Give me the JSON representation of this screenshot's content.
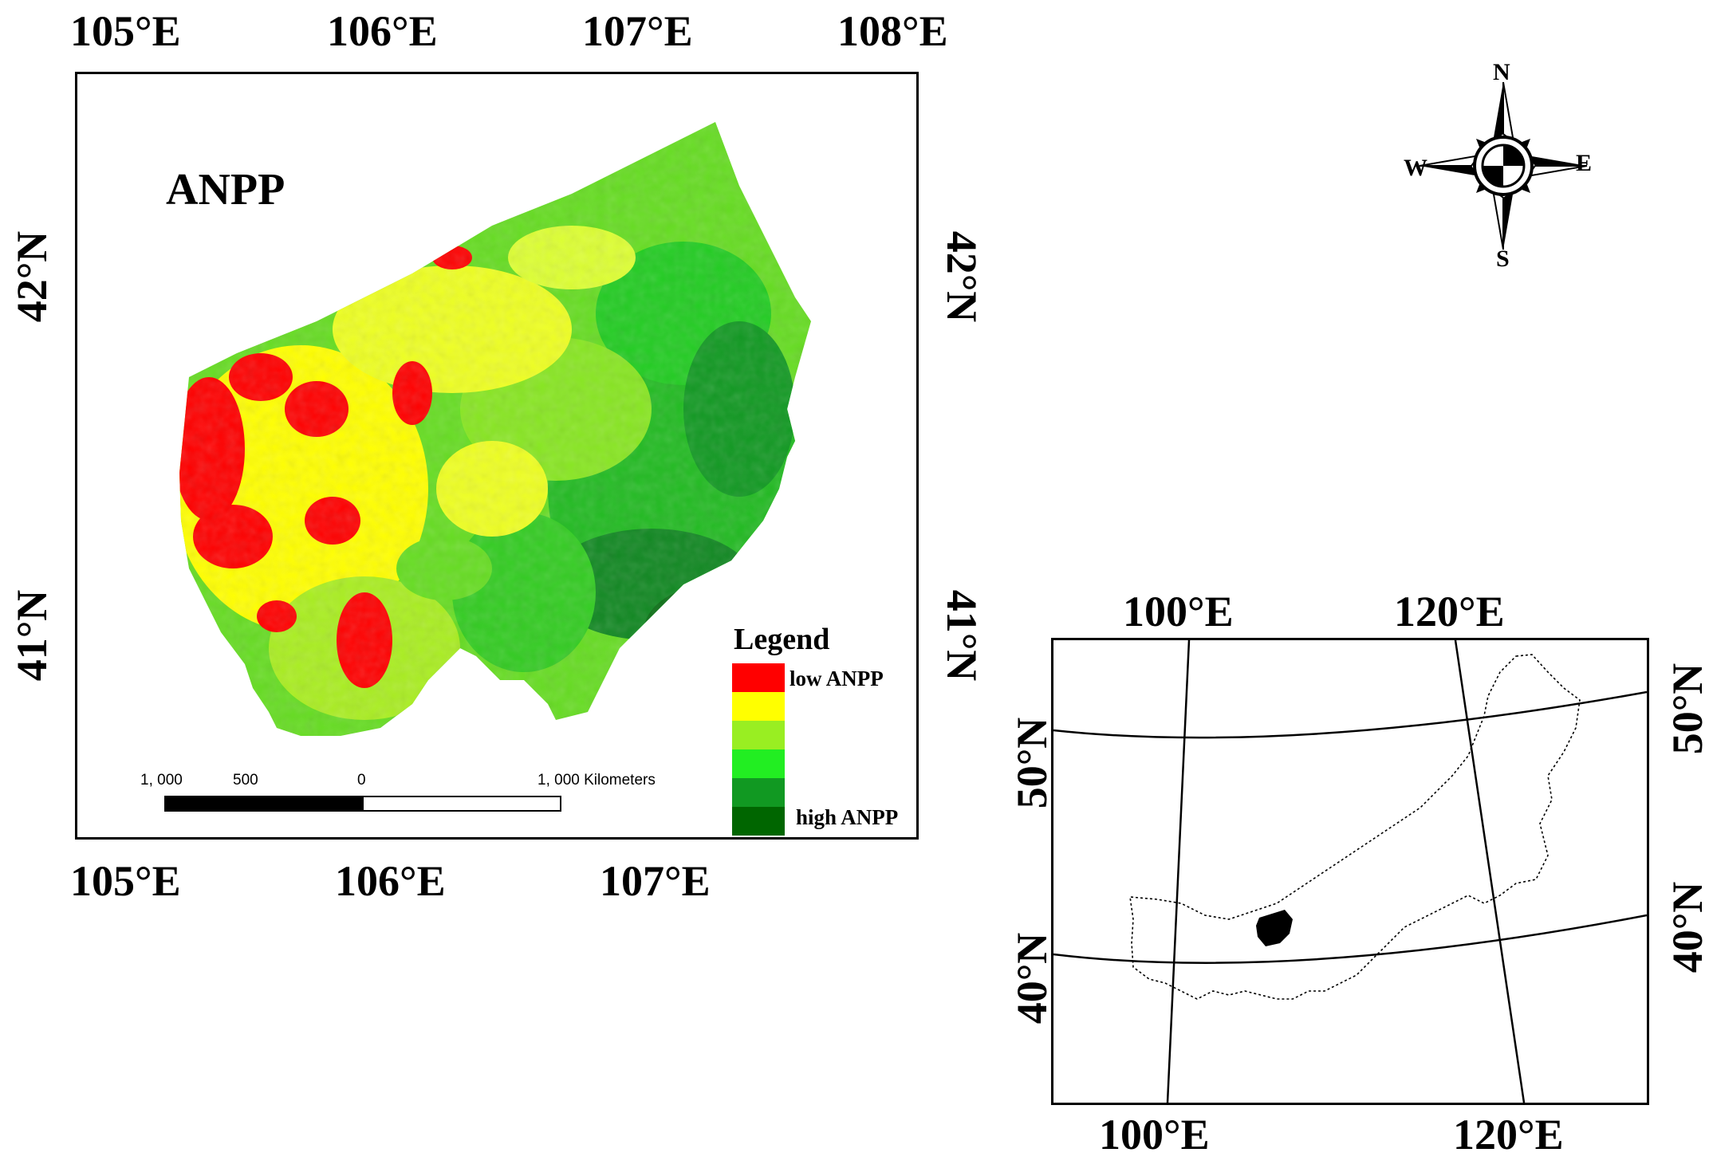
{
  "main_map": {
    "title": "ANPP",
    "top_lon_labels": [
      "105°E",
      "106°E",
      "107°E",
      "108°E"
    ],
    "bottom_lon_labels": [
      "105°E",
      "106°E",
      "107°E"
    ],
    "left_lat_labels": [
      "42°N",
      "41°N"
    ],
    "right_lat_labels": [
      "42°N",
      "41°N"
    ],
    "legend": {
      "title": "Legend",
      "low_label": "low ANPP",
      "high_label": "high ANPP",
      "colors": [
        "#ff0000",
        "#ffff00",
        "#99ee22",
        "#22ee22",
        "#119922",
        "#006600"
      ]
    },
    "scale_bar": {
      "labels": [
        "1, 000",
        "500",
        "0",
        "1, 000 Kilometers"
      ]
    }
  },
  "compass": {
    "north": "N",
    "south": "S",
    "east": "E",
    "west": "W",
    "icon": "north-arrow-compass-rose"
  },
  "inset_map": {
    "top_lon_labels": [
      "100°E",
      "120°E"
    ],
    "bottom_lon_labels": [
      "100°E",
      "120°E"
    ],
    "left_lat_labels": [
      "50°N",
      "40°N"
    ],
    "right_lat_labels": [
      "50°N",
      "40°N"
    ]
  }
}
